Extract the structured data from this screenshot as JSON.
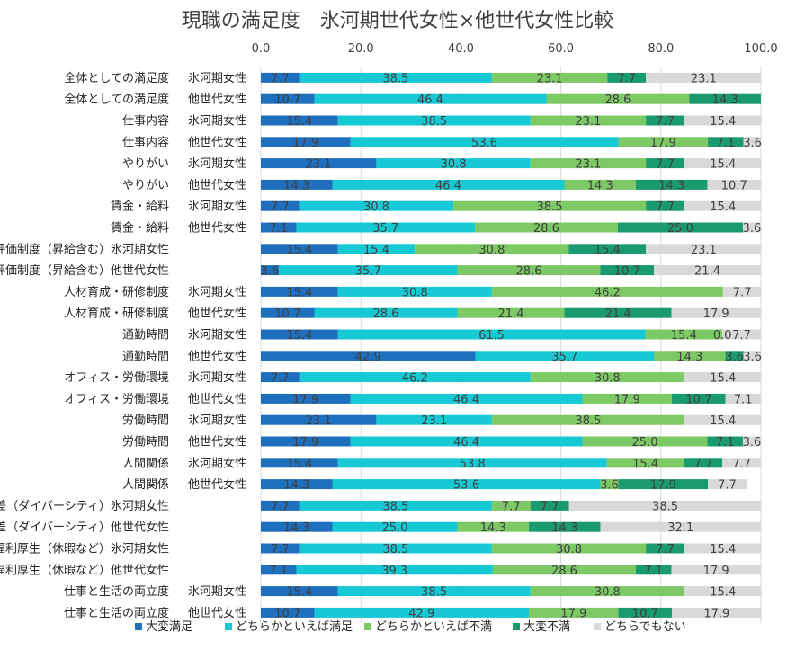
{
  "chart_data": {
    "type": "bar",
    "orientation": "horizontal",
    "stacked": true,
    "title": "現職の満足度　氷河期世代女性×他世代女性比較",
    "xlim": [
      0,
      100
    ],
    "xticks": [
      "0.0",
      "20.0",
      "40.0",
      "60.0",
      "80.0",
      "100.0"
    ],
    "xtick_values": [
      0,
      20,
      40,
      60,
      80,
      100
    ],
    "grid": true,
    "legend_position": "bottom",
    "categories": [
      "全体としての満足度 氷河期女性",
      "全体としての満足度 他世代女性",
      "仕事内容 氷河期女性",
      "仕事内容 他世代女性",
      "やりがい 氷河期女性",
      "やりがい 他世代女性",
      "賃金・給料 氷河期女性",
      "賃金・給料 他世代女性",
      "人事評価制度（昇給含む）氷河期女性",
      "人事評価制度（昇給含む）他世代女性",
      "人材育成・研修制度 氷河期女性",
      "人材育成・研修制度 他世代女性",
      "通勤時間 氷河期女性",
      "通勤時間 他世代女性",
      "オフィス・労働環境 氷河期女性",
      "オフィス・労働環境 他世代女性",
      "労働時間 氷河期女性",
      "労働時間 他世代女性",
      "人間関係 氷河期女性",
      "人間関係 他世代女性",
      "男女格差（ダイバーシティ）氷河期女性",
      "男女格差（ダイバーシティ）他世代女性",
      "福利厚生（休暇など）氷河期女性",
      "福利厚生（休暇など）他世代女性",
      "仕事と生活の両立度 氷河期女性",
      "仕事と生活の両立度 他世代女性"
    ],
    "series": [
      {
        "name": "大変満足",
        "color": "#1f6fbf",
        "values": [
          7.7,
          10.7,
          15.4,
          17.9,
          23.1,
          14.3,
          7.7,
          7.1,
          15.4,
          3.6,
          15.4,
          10.7,
          15.4,
          42.9,
          7.7,
          17.9,
          23.1,
          17.9,
          15.4,
          14.3,
          7.7,
          14.3,
          7.7,
          7.1,
          15.4,
          10.7
        ],
        "labels": [
          "7.7",
          "10.7",
          "15.4",
          "17.9",
          "23.1",
          "14.3",
          "7.7",
          "7.1",
          "15.4",
          "3.6",
          "15.4",
          "10.7",
          "15.4",
          "42.9",
          "7.7",
          "17.9",
          "23.1",
          "17.9",
          "15.4",
          "14.3",
          "7.7",
          "14.3",
          "7.7",
          "7.1",
          "15.4",
          "10.7"
        ]
      },
      {
        "name": "どちらかといえば満足",
        "color": "#17c9d4",
        "values": [
          38.5,
          46.4,
          38.5,
          53.6,
          30.8,
          46.4,
          30.8,
          35.7,
          15.4,
          35.7,
          30.8,
          28.6,
          61.5,
          35.7,
          46.2,
          46.4,
          23.1,
          46.4,
          53.8,
          53.6,
          38.5,
          25.0,
          38.5,
          39.3,
          38.5,
          42.9
        ],
        "labels": [
          "38.5",
          "46.4",
          "38.5",
          "53.6",
          "30.8",
          "46.4",
          "30.8",
          "35.7",
          "15.4",
          "35.7",
          "30.8",
          "28.6",
          "61.5",
          "35.7",
          "46.2",
          "46.4",
          "23.1",
          "46.4",
          "53.8",
          "53.6",
          "38.5",
          "25.0",
          "38.5",
          "39.3",
          "38.5",
          "42.9"
        ]
      },
      {
        "name": "どちらかといえば不満",
        "color": "#7dc965",
        "values": [
          23.1,
          28.6,
          23.1,
          17.9,
          23.1,
          14.3,
          38.5,
          28.6,
          30.8,
          28.6,
          46.2,
          21.4,
          15.4,
          14.3,
          30.8,
          17.9,
          38.5,
          25.0,
          15.4,
          3.6,
          7.7,
          14.3,
          30.8,
          28.6,
          30.8,
          17.9
        ],
        "labels": [
          "23.1",
          "28.6",
          "23.1",
          "17.9",
          "23.1",
          "14.3",
          "38.5",
          "28.6",
          "30.8",
          "28.6",
          "46.2",
          "21.4",
          "15.4",
          "14.3",
          "30.8",
          "17.9",
          "38.5",
          "25.0",
          "15.4",
          "3.6",
          "7.7",
          "14.3",
          "30.8",
          "28.6",
          "30.8",
          "17.9"
        ]
      },
      {
        "name": "大変不満",
        "color": "#1a9a70",
        "values": [
          7.7,
          14.3,
          7.7,
          7.1,
          7.7,
          14.3,
          7.7,
          25.0,
          15.4,
          10.7,
          0.0,
          21.4,
          0.0,
          3.6,
          0.0,
          10.7,
          0.0,
          7.1,
          7.7,
          17.9,
          7.7,
          14.3,
          7.7,
          7.1,
          0.0,
          10.7
        ],
        "labels": [
          "7.7",
          "14.3",
          "7.7",
          "7.1",
          "7.7",
          "14.3",
          "7.7",
          "25.0",
          "15.4",
          "10.7",
          "",
          "21.4",
          "0.0",
          "3.6",
          "",
          "10.7",
          "",
          "7.1",
          "7.7",
          "17.9",
          "7.7",
          "14.3",
          "7.7",
          "7.1",
          "",
          "10.7"
        ]
      },
      {
        "name": "どちらでもない",
        "color": "#d9d9d9",
        "values": [
          23.1,
          0.0,
          15.4,
          3.6,
          15.4,
          10.7,
          15.4,
          3.6,
          23.1,
          21.4,
          7.7,
          17.9,
          7.7,
          3.6,
          15.4,
          7.1,
          15.4,
          3.6,
          7.7,
          7.7,
          38.5,
          32.1,
          15.4,
          17.9,
          15.4,
          17.9
        ],
        "labels": [
          "23.1",
          "",
          "15.4",
          "3.6",
          "15.4",
          "10.7",
          "15.4",
          "3.6",
          "23.1",
          "21.4",
          "7.7",
          "17.9",
          "7.7",
          "3.6",
          "15.4",
          "7.1",
          "15.4",
          "3.6",
          "7.7",
          "7.7",
          "38.5",
          "32.1",
          "15.4",
          "17.9",
          "15.4",
          "17.9"
        ]
      }
    ]
  }
}
